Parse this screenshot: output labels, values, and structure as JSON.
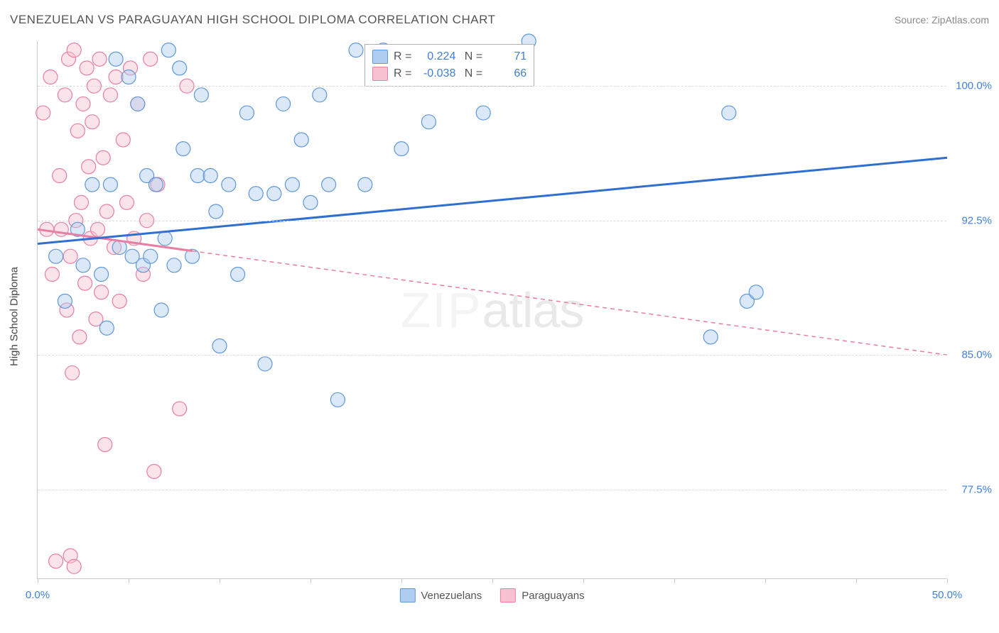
{
  "title": "VENEZUELAN VS PARAGUAYAN HIGH SCHOOL DIPLOMA CORRELATION CHART",
  "source": "Source: ZipAtlas.com",
  "watermark": {
    "part1": "ZIP",
    "part2": "atlas"
  },
  "y_axis_label": "High School Diploma",
  "colors": {
    "blue_fill": "#aecdf0",
    "blue_stroke": "#5f97d8",
    "blue_line": "#2f6fcf",
    "pink_fill": "#f6c1d1",
    "pink_stroke": "#e87ea3",
    "pink_line": "#e87ea3",
    "tick_label": "#3f7fd9",
    "grid": "#dcdcdc",
    "axis": "#c8c8c8",
    "text": "#555555",
    "watermark_light": "#e8e8e8",
    "watermark_dark": "#cfcfcf"
  },
  "stats": {
    "series1": {
      "R": "0.224",
      "N": "71"
    },
    "series2": {
      "R": "-0.038",
      "N": "66"
    }
  },
  "legend": {
    "series1_name": "Venezuelans",
    "series2_name": "Paraguayans"
  },
  "axes": {
    "xlim": [
      0,
      50
    ],
    "ylim": [
      72.5,
      102.5
    ],
    "xticks": [
      0,
      5,
      10,
      15,
      20,
      25,
      30,
      35,
      40,
      45,
      50
    ],
    "xtick_labels": {
      "0": "0.0%",
      "50": "50.0%"
    },
    "yticks": [
      77.5,
      85.0,
      92.5,
      100.0
    ],
    "ytick_labels": [
      "77.5%",
      "85.0%",
      "92.5%",
      "100.0%"
    ]
  },
  "scatter": {
    "marker_radius": 10,
    "marker_opacity": 0.45,
    "blue_points": [
      [
        1.0,
        90.5
      ],
      [
        1.5,
        88.0
      ],
      [
        2.2,
        92.0
      ],
      [
        2.5,
        90.0
      ],
      [
        3.0,
        94.5
      ],
      [
        3.5,
        89.5
      ],
      [
        3.8,
        86.5
      ],
      [
        4.0,
        94.5
      ],
      [
        4.3,
        101.5
      ],
      [
        4.5,
        91.0
      ],
      [
        5.0,
        100.5
      ],
      [
        5.2,
        90.5
      ],
      [
        5.5,
        99.0
      ],
      [
        5.8,
        90.0
      ],
      [
        6.0,
        95.0
      ],
      [
        6.2,
        90.5
      ],
      [
        6.5,
        94.5
      ],
      [
        6.8,
        87.5
      ],
      [
        7.0,
        91.5
      ],
      [
        7.2,
        102.0
      ],
      [
        7.5,
        90.0
      ],
      [
        7.8,
        101.0
      ],
      [
        8.0,
        96.5
      ],
      [
        8.5,
        90.5
      ],
      [
        8.8,
        95.0
      ],
      [
        9.0,
        99.5
      ],
      [
        9.5,
        95.0
      ],
      [
        9.8,
        93.0
      ],
      [
        10.0,
        85.5
      ],
      [
        10.5,
        94.5
      ],
      [
        11.0,
        89.5
      ],
      [
        11.5,
        98.5
      ],
      [
        12.0,
        94.0
      ],
      [
        12.5,
        84.5
      ],
      [
        13.0,
        94.0
      ],
      [
        13.5,
        99.0
      ],
      [
        14.0,
        94.5
      ],
      [
        14.5,
        97.0
      ],
      [
        15.0,
        93.5
      ],
      [
        15.5,
        99.5
      ],
      [
        16.0,
        94.5
      ],
      [
        16.5,
        82.5
      ],
      [
        17.5,
        102.0
      ],
      [
        18.0,
        94.5
      ],
      [
        19.0,
        102.0
      ],
      [
        20.0,
        96.5
      ],
      [
        21.5,
        98.0
      ],
      [
        24.5,
        98.5
      ],
      [
        27.0,
        102.5
      ],
      [
        37.0,
        86.0
      ],
      [
        38.0,
        98.5
      ],
      [
        39.0,
        88.0
      ],
      [
        39.5,
        88.5
      ]
    ],
    "pink_points": [
      [
        0.3,
        98.5
      ],
      [
        0.5,
        92.0
      ],
      [
        0.7,
        100.5
      ],
      [
        0.8,
        89.5
      ],
      [
        1.0,
        73.5
      ],
      [
        1.2,
        95.0
      ],
      [
        1.3,
        92.0
      ],
      [
        1.5,
        99.5
      ],
      [
        1.6,
        87.5
      ],
      [
        1.7,
        101.5
      ],
      [
        1.8,
        90.5
      ],
      [
        1.9,
        84.0
      ],
      [
        2.0,
        102.0
      ],
      [
        2.1,
        92.5
      ],
      [
        2.2,
        97.5
      ],
      [
        2.3,
        86.0
      ],
      [
        2.4,
        93.5
      ],
      [
        2.5,
        99.0
      ],
      [
        2.6,
        89.0
      ],
      [
        2.7,
        101.0
      ],
      [
        2.8,
        95.5
      ],
      [
        2.9,
        91.5
      ],
      [
        3.0,
        98.0
      ],
      [
        3.1,
        100.0
      ],
      [
        3.2,
        87.0
      ],
      [
        3.3,
        92.0
      ],
      [
        3.4,
        101.5
      ],
      [
        3.5,
        88.5
      ],
      [
        3.6,
        96.0
      ],
      [
        3.7,
        80.0
      ],
      [
        3.8,
        93.0
      ],
      [
        4.0,
        99.5
      ],
      [
        4.2,
        91.0
      ],
      [
        4.3,
        100.5
      ],
      [
        4.5,
        88.0
      ],
      [
        4.7,
        97.0
      ],
      [
        4.9,
        93.5
      ],
      [
        5.1,
        101.0
      ],
      [
        5.3,
        91.5
      ],
      [
        5.5,
        99.0
      ],
      [
        5.8,
        89.5
      ],
      [
        6.0,
        92.5
      ],
      [
        6.2,
        101.5
      ],
      [
        6.4,
        78.5
      ],
      [
        6.6,
        94.5
      ],
      [
        7.8,
        82.0
      ],
      [
        8.2,
        100.0
      ],
      [
        1.8,
        73.8
      ],
      [
        2.0,
        73.2
      ]
    ]
  },
  "trend_lines": {
    "blue": {
      "x1": 0,
      "y1": 91.2,
      "x2": 50,
      "y2": 96.0,
      "width": 3,
      "dash": "none"
    },
    "pink_solid": {
      "x1": 0,
      "y1": 92.0,
      "x2": 8.5,
      "y2": 90.8,
      "width": 3,
      "dash": "none"
    },
    "pink_dash": {
      "x1": 8.5,
      "y1": 90.8,
      "x2": 50,
      "y2": 85.0,
      "width": 1.5,
      "dash": "6,5"
    }
  }
}
